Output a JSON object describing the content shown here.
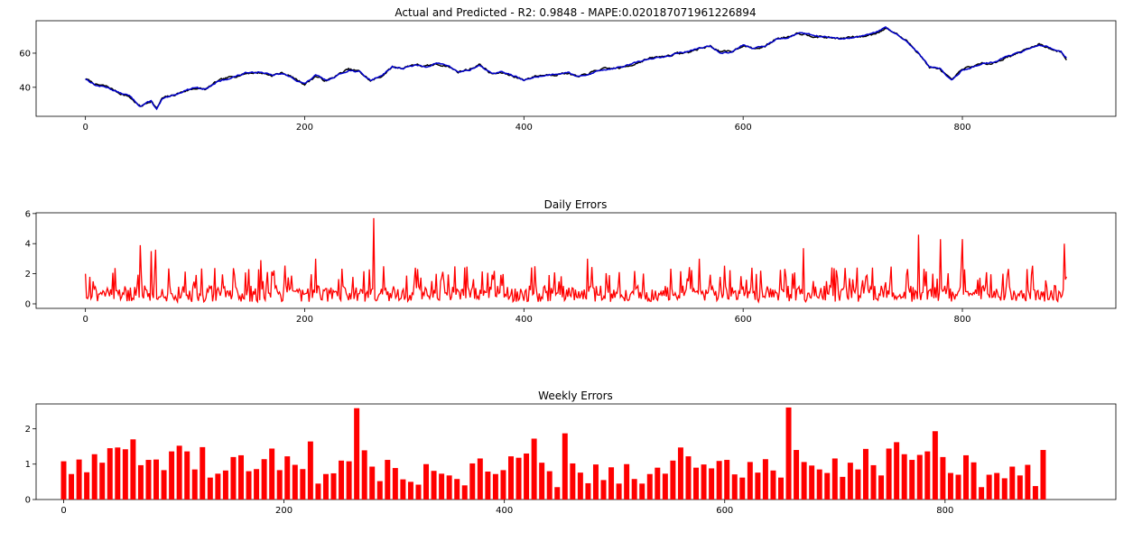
{
  "colors": {
    "actual": "#000000",
    "predicted": "#0000cc",
    "errors": "#ff0000"
  },
  "chart_data": [
    {
      "type": "line",
      "title": "Actual and Predicted - R2: 0.9848 - MAPE:0.020187071961226894",
      "xlim": [
        -45,
        940
      ],
      "ylim": [
        23,
        79
      ],
      "xticks": [
        0,
        200,
        400,
        600,
        800
      ],
      "yticks": [
        40,
        60
      ],
      "anchors": [
        [
          0,
          45
        ],
        [
          10,
          41
        ],
        [
          20,
          40
        ],
        [
          30,
          37
        ],
        [
          40,
          35
        ],
        [
          50,
          29
        ],
        [
          60,
          32
        ],
        [
          65,
          27
        ],
        [
          70,
          33
        ],
        [
          80,
          35
        ],
        [
          90,
          38
        ],
        [
          100,
          40
        ],
        [
          110,
          39
        ],
        [
          120,
          43
        ],
        [
          130,
          45
        ],
        [
          140,
          47
        ],
        [
          150,
          49
        ],
        [
          160,
          49
        ],
        [
          170,
          47
        ],
        [
          180,
          48
        ],
        [
          190,
          45
        ],
        [
          200,
          42
        ],
        [
          210,
          47
        ],
        [
          220,
          44
        ],
        [
          230,
          47
        ],
        [
          240,
          50
        ],
        [
          250,
          49
        ],
        [
          260,
          44
        ],
        [
          270,
          47
        ],
        [
          280,
          52
        ],
        [
          290,
          51
        ],
        [
          300,
          53
        ],
        [
          310,
          52
        ],
        [
          320,
          54
        ],
        [
          330,
          53
        ],
        [
          340,
          49
        ],
        [
          350,
          50
        ],
        [
          360,
          53
        ],
        [
          370,
          48
        ],
        [
          380,
          49
        ],
        [
          390,
          47
        ],
        [
          400,
          44
        ],
        [
          410,
          46
        ],
        [
          420,
          47
        ],
        [
          430,
          48
        ],
        [
          440,
          49
        ],
        [
          450,
          46
        ],
        [
          460,
          48
        ],
        [
          470,
          50
        ],
        [
          480,
          51
        ],
        [
          490,
          52
        ],
        [
          500,
          54
        ],
        [
          510,
          56
        ],
        [
          520,
          57
        ],
        [
          530,
          58
        ],
        [
          540,
          60
        ],
        [
          550,
          61
        ],
        [
          560,
          63
        ],
        [
          570,
          64
        ],
        [
          580,
          60
        ],
        [
          590,
          61
        ],
        [
          600,
          65
        ],
        [
          610,
          63
        ],
        [
          620,
          64
        ],
        [
          630,
          68
        ],
        [
          640,
          69
        ],
        [
          650,
          72
        ],
        [
          660,
          71
        ],
        [
          670,
          70
        ],
        [
          680,
          69
        ],
        [
          690,
          68
        ],
        [
          700,
          69
        ],
        [
          710,
          70
        ],
        [
          720,
          72
        ],
        [
          730,
          75
        ],
        [
          740,
          71
        ],
        [
          750,
          66
        ],
        [
          760,
          60
        ],
        [
          770,
          52
        ],
        [
          780,
          51
        ],
        [
          790,
          44
        ],
        [
          800,
          50
        ],
        [
          810,
          52
        ],
        [
          820,
          54
        ],
        [
          830,
          55
        ],
        [
          840,
          58
        ],
        [
          850,
          60
        ],
        [
          860,
          62
        ],
        [
          870,
          65
        ],
        [
          880,
          63
        ],
        [
          890,
          61
        ],
        [
          895,
          57
        ]
      ],
      "series": [
        {
          "color": "#000000",
          "noise": 1.0,
          "seed": 7,
          "offset": 0.5
        },
        {
          "color": "#0000cc",
          "noise": 0.7,
          "seed": 13,
          "offset": 0
        }
      ]
    },
    {
      "type": "line",
      "title": "Daily Errors",
      "xlim": [
        -45,
        940
      ],
      "ylim": [
        -0.3,
        6.05
      ],
      "xticks": [
        0,
        200,
        400,
        600,
        800
      ],
      "yticks": [
        0,
        2,
        4,
        6
      ],
      "count": 896,
      "base": 0.9,
      "spread": 1.4,
      "seed": 21,
      "spikes": [
        [
          0,
          2.0
        ],
        [
          50,
          3.9
        ],
        [
          60,
          3.5
        ],
        [
          64,
          3.6
        ],
        [
          160,
          2.9
        ],
        [
          210,
          3.0
        ],
        [
          263,
          5.7
        ],
        [
          272,
          2.5
        ],
        [
          410,
          2.5
        ],
        [
          458,
          3.0
        ],
        [
          560,
          3.0
        ],
        [
          655,
          3.7
        ],
        [
          760,
          4.6
        ],
        [
          780,
          4.3
        ],
        [
          800,
          4.3
        ],
        [
          893,
          4.0
        ],
        [
          895,
          1.8
        ]
      ],
      "color": "#ff0000"
    },
    {
      "type": "bar",
      "title": "Weekly Errors",
      "xlim": [
        -25,
        955
      ],
      "ylim": [
        0,
        2.7
      ],
      "xticks": [
        0,
        200,
        400,
        600,
        800
      ],
      "yticks": [
        0,
        1,
        2
      ],
      "x_step": 7,
      "bar_width": 4.9,
      "values": [
        1.08,
        0.72,
        1.13,
        0.77,
        1.28,
        1.04,
        1.45,
        1.47,
        1.42,
        1.7,
        0.97,
        1.12,
        1.13,
        0.83,
        1.36,
        1.52,
        1.36,
        0.85,
        1.48,
        0.62,
        0.73,
        0.82,
        1.2,
        1.25,
        0.8,
        0.86,
        1.14,
        1.44,
        0.83,
        1.22,
        0.98,
        0.86,
        1.64,
        0.45,
        0.72,
        0.74,
        1.1,
        1.08,
        2.58,
        1.39,
        0.93,
        0.52,
        1.12,
        0.89,
        0.57,
        0.5,
        0.42,
        1.0,
        0.81,
        0.73,
        0.68,
        0.58,
        0.4,
        1.02,
        1.16,
        0.79,
        0.72,
        0.83,
        1.22,
        1.18,
        1.3,
        1.72,
        1.04,
        0.8,
        0.35,
        1.87,
        1.02,
        0.76,
        0.46,
        0.99,
        0.55,
        0.91,
        0.45,
        1.0,
        0.58,
        0.45,
        0.72,
        0.9,
        0.73,
        1.1,
        1.47,
        1.22,
        0.9,
        0.99,
        0.88,
        1.09,
        1.12,
        0.71,
        0.62,
        1.06,
        0.76,
        1.14,
        0.82,
        0.62,
        2.6,
        1.4,
        1.06,
        0.96,
        0.85,
        0.75,
        1.16,
        0.64,
        1.04,
        0.85,
        1.43,
        0.97,
        0.68,
        1.44,
        1.62,
        1.28,
        1.12,
        1.26,
        1.36,
        1.93,
        1.2,
        0.75,
        0.7,
        1.25,
        1.05,
        0.35,
        0.7,
        0.75,
        0.6,
        0.93,
        0.68,
        0.98,
        0.38,
        1.4
      ],
      "color": "#ff0000"
    }
  ]
}
